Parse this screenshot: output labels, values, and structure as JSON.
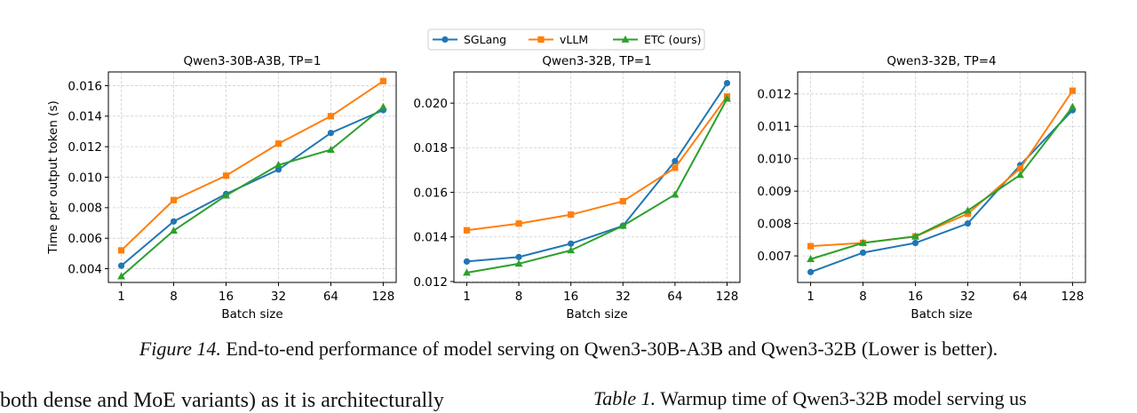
{
  "legend": [
    {
      "name": "SGLang",
      "color": "#1f77b4",
      "marker": "circle"
    },
    {
      "name": "vLLM",
      "color": "#ff7f0e",
      "marker": "square"
    },
    {
      "name": "ETC (ours)",
      "color": "#2ca02c",
      "marker": "triangle"
    }
  ],
  "caption": {
    "label": "Figure 14.",
    "text": "End-to-end performance of model serving on Qwen3-30B-A3B and Qwen3-32B (Lower is better)."
  },
  "body_text": {
    "left": "both dense and MoE variants) as it is architecturally",
    "right_label": "Table 1.",
    "right_text": "Warmup time of Qwen3-32B model serving us"
  },
  "chart_data": [
    {
      "type": "line",
      "title": "Qwen3-30B-A3B, TP=1",
      "xlabel": "Batch size",
      "ylabel": "Time per output token (s)",
      "categories": [
        "1",
        "8",
        "16",
        "32",
        "64",
        "128"
      ],
      "yticks": [
        "0.004",
        "0.006",
        "0.008",
        "0.010",
        "0.012",
        "0.014",
        "0.016"
      ],
      "ylim": [
        0.0031,
        0.0169
      ],
      "grid": true,
      "series": [
        {
          "name": "SGLang",
          "values": [
            0.0042,
            0.0071,
            0.0089,
            0.0105,
            0.0129,
            0.0144
          ]
        },
        {
          "name": "vLLM",
          "values": [
            0.0052,
            0.0085,
            0.0101,
            0.0122,
            0.014,
            0.0163
          ]
        },
        {
          "name": "ETC (ours)",
          "values": [
            0.0035,
            0.0065,
            0.0088,
            0.0108,
            0.0118,
            0.0146
          ]
        }
      ]
    },
    {
      "type": "line",
      "title": "Qwen3-32B, TP=1",
      "xlabel": "Batch size",
      "ylabel": "",
      "categories": [
        "1",
        "8",
        "16",
        "32",
        "64",
        "128"
      ],
      "yticks": [
        "0.012",
        "0.014",
        "0.016",
        "0.018",
        "0.020"
      ],
      "ylim": [
        0.01196,
        0.0214
      ],
      "grid": true,
      "series": [
        {
          "name": "SGLang",
          "values": [
            0.0129,
            0.0131,
            0.0137,
            0.0145,
            0.0174,
            0.0209
          ]
        },
        {
          "name": "vLLM",
          "values": [
            0.0143,
            0.0146,
            0.015,
            0.0156,
            0.0171,
            0.0203
          ]
        },
        {
          "name": "ETC (ours)",
          "values": [
            0.0124,
            0.0128,
            0.0134,
            0.0145,
            0.0159,
            0.0202
          ]
        }
      ]
    },
    {
      "type": "line",
      "title": "Qwen3-32B, TP=4",
      "xlabel": "Batch size",
      "ylabel": "",
      "categories": [
        "1",
        "8",
        "16",
        "32",
        "64",
        "128"
      ],
      "yticks": [
        "0.007",
        "0.008",
        "0.009",
        "0.010",
        "0.011",
        "0.012"
      ],
      "ylim": [
        0.00618,
        0.01268
      ],
      "grid": true,
      "series": [
        {
          "name": "SGLang",
          "values": [
            0.0065,
            0.0071,
            0.0074,
            0.008,
            0.0098,
            0.0115
          ]
        },
        {
          "name": "vLLM",
          "values": [
            0.0073,
            0.0074,
            0.0076,
            0.0083,
            0.0097,
            0.0121
          ]
        },
        {
          "name": "ETC (ours)",
          "values": [
            0.0069,
            0.0074,
            0.0076,
            0.0084,
            0.0095,
            0.0116
          ]
        }
      ]
    }
  ]
}
